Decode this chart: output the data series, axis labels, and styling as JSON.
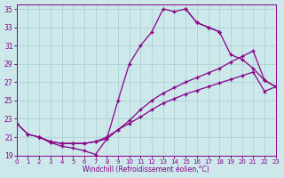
{
  "xlabel": "Windchill (Refroidissement éolien,°C)",
  "background_color": "#cce8ea",
  "grid_color": "#aacdd0",
  "line_color": "#880088",
  "xlim": [
    0,
    23
  ],
  "ylim": [
    19,
    35.5
  ],
  "xticks": [
    0,
    1,
    2,
    3,
    4,
    5,
    6,
    7,
    8,
    9,
    10,
    11,
    12,
    13,
    14,
    15,
    16,
    17,
    18,
    19,
    20,
    21,
    22,
    23
  ],
  "yticks": [
    19,
    21,
    23,
    25,
    27,
    29,
    31,
    33,
    35
  ],
  "curve_upper_x": [
    0,
    1,
    2,
    3,
    4,
    5,
    6,
    7,
    8,
    9,
    10,
    11,
    12,
    13,
    14,
    15,
    16,
    17,
    18
  ],
  "curve_upper_y": [
    22.5,
    21.3,
    21.0,
    20.4,
    20.0,
    19.8,
    19.5,
    19.1,
    20.8,
    25.0,
    29.0,
    31.0,
    32.5,
    35.0,
    34.7,
    35.0,
    33.5,
    33.0,
    32.5
  ],
  "curve_upper_right_x": [
    15,
    16,
    17,
    18,
    19,
    20,
    21,
    22,
    23
  ],
  "curve_upper_right_y": [
    35.0,
    33.5,
    33.0,
    32.5,
    30.0,
    29.5,
    28.5,
    27.2,
    26.5
  ],
  "curve_mid_x": [
    0,
    1,
    2,
    3,
    4,
    5,
    6,
    7,
    8,
    9,
    10,
    11,
    12,
    13,
    14,
    15,
    16,
    17,
    18,
    19,
    20,
    21,
    22,
    23
  ],
  "curve_mid_y": [
    22.5,
    21.3,
    21.0,
    20.5,
    20.3,
    20.3,
    20.3,
    20.5,
    20.8,
    21.8,
    22.8,
    24.0,
    25.0,
    25.8,
    26.4,
    27.0,
    27.5,
    28.0,
    28.5,
    29.2,
    29.8,
    30.4,
    27.2,
    26.5
  ],
  "curve_low_x": [
    2,
    3,
    4,
    5,
    6,
    7,
    8,
    9,
    10,
    11,
    12,
    13,
    14,
    15,
    16,
    17,
    18,
    19,
    20,
    21,
    22,
    23
  ],
  "curve_low_y": [
    21.0,
    20.5,
    20.3,
    20.3,
    20.3,
    20.5,
    21.0,
    21.8,
    22.5,
    23.2,
    24.0,
    24.7,
    25.2,
    25.7,
    26.1,
    26.5,
    26.9,
    27.3,
    27.7,
    28.1,
    26.0,
    26.5
  ],
  "figsize": [
    3.2,
    2.0
  ],
  "dpi": 100
}
